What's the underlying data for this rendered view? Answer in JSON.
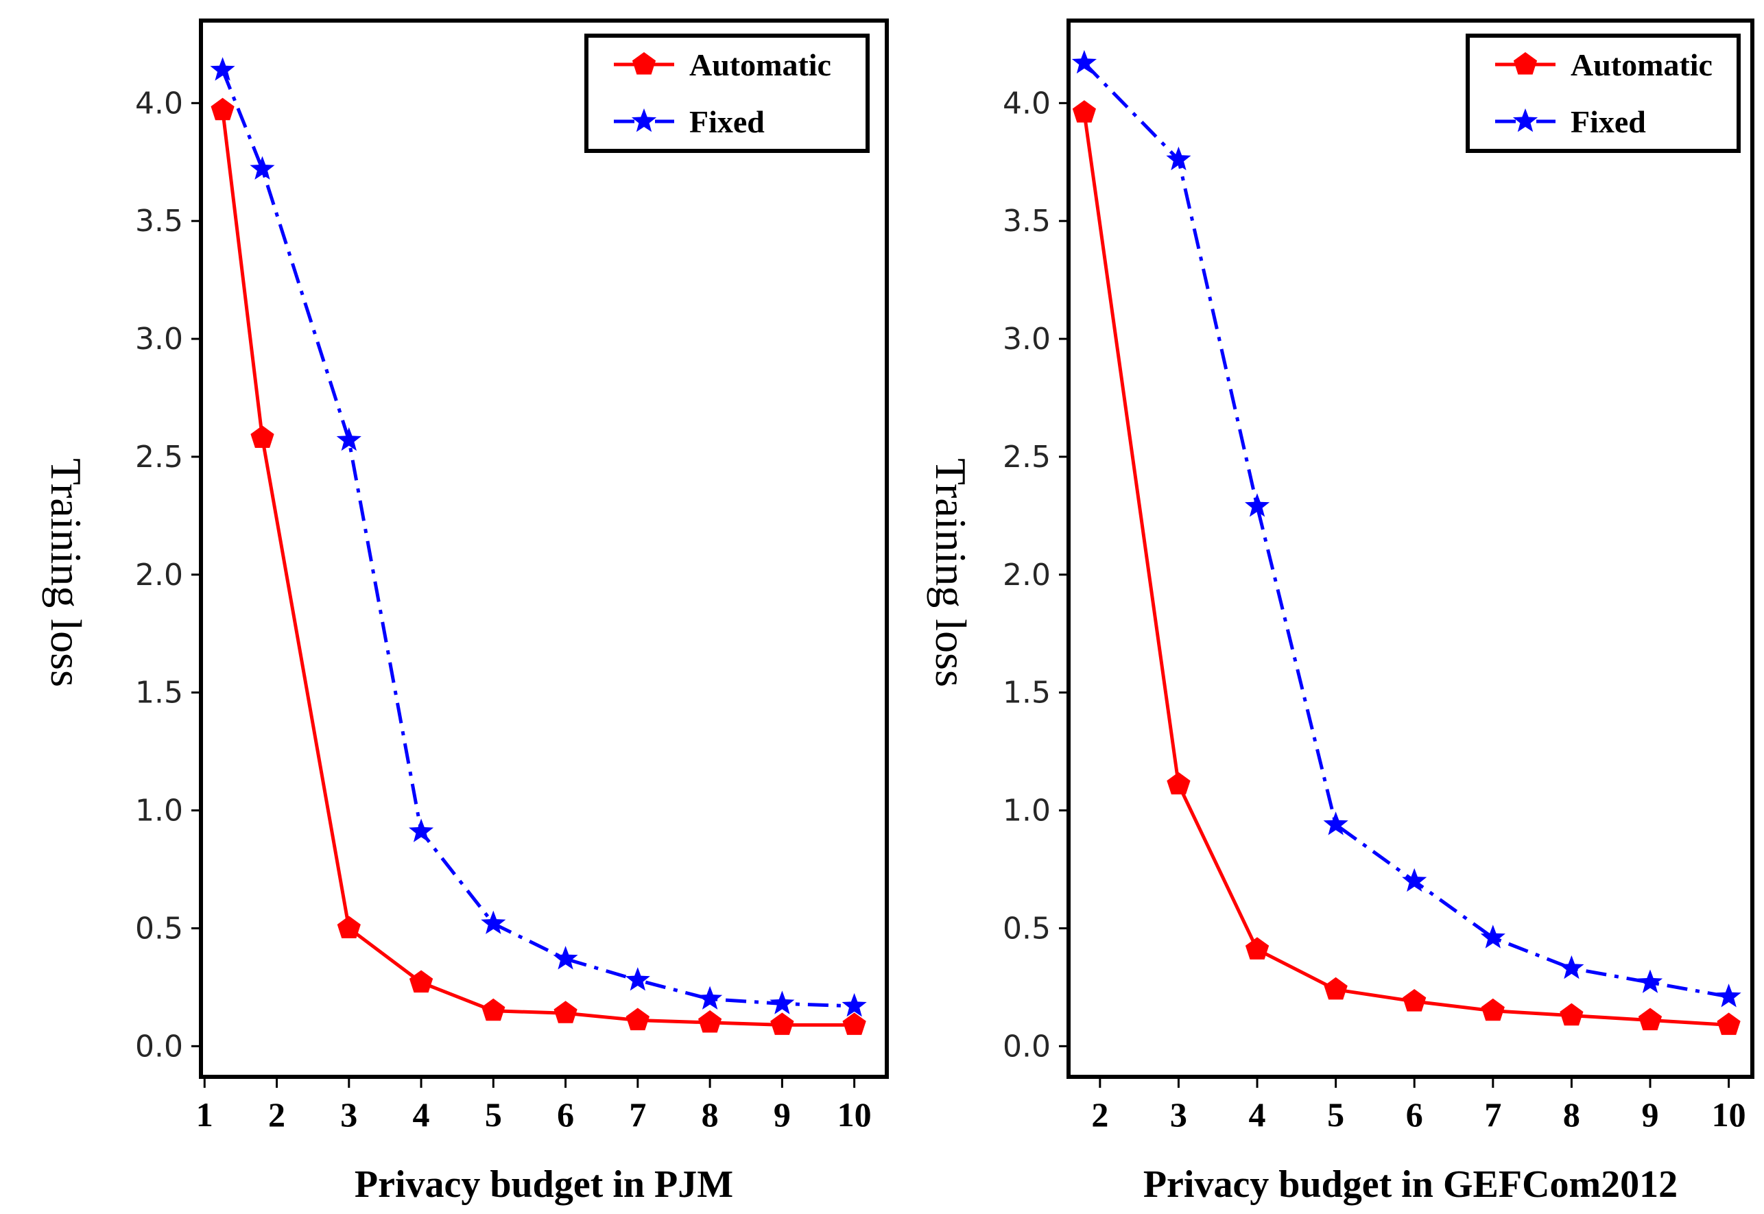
{
  "chart_data": [
    {
      "type": "line",
      "xlabel": "Privacy budget in PJM",
      "ylabel": "Training loss",
      "xlim": [
        0.95,
        10.45
      ],
      "ylim": [
        -0.13,
        4.35
      ],
      "x_ticks": [
        "1",
        "2",
        "3",
        "4",
        "5",
        "6",
        "7",
        "8",
        "9",
        "10"
      ],
      "y_ticks": [
        "0.0",
        "0.5",
        "1.0",
        "1.5",
        "2.0",
        "2.5",
        "3.0",
        "3.5",
        "4.0"
      ],
      "legend_position": "top-right",
      "series": [
        {
          "name": "Automatic",
          "color": "#ff0000",
          "marker": "pentagon",
          "style": "solid",
          "x": [
            1.25,
            1.8,
            3,
            4,
            5,
            6,
            7,
            8,
            9,
            10
          ],
          "y": [
            3.97,
            2.58,
            0.5,
            0.27,
            0.15,
            0.14,
            0.11,
            0.1,
            0.09,
            0.09
          ]
        },
        {
          "name": "Fixed",
          "color": "#0000ff",
          "marker": "star",
          "style": "dashdot",
          "x": [
            1.25,
            1.8,
            3,
            4,
            5,
            6,
            7,
            8,
            9,
            10
          ],
          "y": [
            4.14,
            3.72,
            2.57,
            0.91,
            0.52,
            0.37,
            0.28,
            0.2,
            0.18,
            0.17
          ]
        }
      ]
    },
    {
      "type": "line",
      "xlabel": "Privacy budget in GEFCom2012",
      "ylabel": "Training loss",
      "xlim": [
        1.6,
        10.3
      ],
      "ylim": [
        -0.13,
        4.35
      ],
      "x_ticks": [
        "2",
        "3",
        "4",
        "5",
        "6",
        "7",
        "8",
        "9",
        "10"
      ],
      "y_ticks": [
        "0.0",
        "0.5",
        "1.0",
        "1.5",
        "2.0",
        "2.5",
        "3.0",
        "3.5",
        "4.0"
      ],
      "legend_position": "top-right",
      "series": [
        {
          "name": "Automatic",
          "color": "#ff0000",
          "marker": "pentagon",
          "style": "solid",
          "x": [
            1.8,
            3,
            4,
            5,
            6,
            7,
            8,
            9,
            10
          ],
          "y": [
            3.96,
            1.11,
            0.41,
            0.24,
            0.19,
            0.15,
            0.13,
            0.11,
            0.09
          ]
        },
        {
          "name": "Fixed",
          "color": "#0000ff",
          "marker": "star",
          "style": "dashdot",
          "x": [
            1.8,
            3,
            4,
            5,
            6,
            7,
            8,
            9,
            10
          ],
          "y": [
            4.17,
            3.76,
            2.29,
            0.94,
            0.7,
            0.46,
            0.33,
            0.27,
            0.21
          ]
        }
      ]
    }
  ]
}
